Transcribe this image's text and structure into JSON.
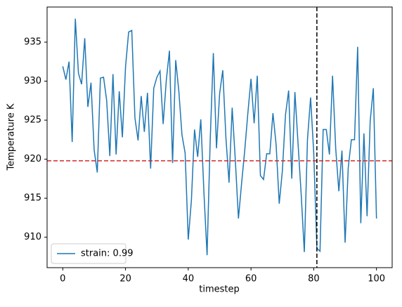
{
  "chart_data": {
    "type": "line",
    "xlabel": "timestep",
    "ylabel": "Temperature K",
    "x": [
      0,
      1,
      2,
      3,
      4,
      5,
      6,
      7,
      8,
      9,
      10,
      11,
      12,
      13,
      14,
      15,
      16,
      17,
      18,
      19,
      20,
      21,
      22,
      23,
      24,
      25,
      26,
      27,
      28,
      29,
      30,
      31,
      32,
      33,
      34,
      35,
      36,
      37,
      38,
      39,
      40,
      41,
      42,
      43,
      44,
      45,
      46,
      47,
      48,
      49,
      50,
      51,
      52,
      53,
      54,
      55,
      56,
      57,
      58,
      59,
      60,
      61,
      62,
      63,
      64,
      65,
      66,
      67,
      68,
      69,
      70,
      71,
      72,
      73,
      74,
      75,
      76,
      77,
      78,
      79,
      80,
      81,
      82,
      83,
      84,
      85,
      86,
      87,
      88,
      89,
      90,
      91,
      92,
      93,
      94,
      95,
      96,
      97,
      98,
      99,
      100
    ],
    "series": [
      {
        "name": "strain: 0.99",
        "color": "#1f77b4",
        "values": [
          931.9,
          930.2,
          932.5,
          922.2,
          938,
          931,
          929.6,
          935.5,
          926.7,
          929.8,
          921.2,
          918.3,
          930.4,
          930.5,
          927.5,
          920.4,
          930.9,
          920.6,
          928.7,
          922.8,
          931.8,
          936.3,
          936.5,
          925.3,
          922.4,
          928.1,
          923.5,
          928.5,
          918.8,
          929.1,
          930.5,
          931.3,
          924.5,
          930.1,
          933.9,
          919.5,
          932.7,
          928.7,
          923.1,
          920.8,
          909.7,
          914.7,
          923.8,
          920.3,
          925.1,
          915.7,
          907.7,
          922.5,
          933.6,
          921.4,
          928.4,
          931.4,
          922.8,
          917,
          926.6,
          919.9,
          912.4,
          916.9,
          921.1,
          925.9,
          930.3,
          924.6,
          930.7,
          917.9,
          917.4,
          920.7,
          920.7,
          925.9,
          921.9,
          914.3,
          918.5,
          925.7,
          928.8,
          917.5,
          928.6,
          922,
          915.5,
          908.1,
          922.5,
          927.9,
          920.8,
          908.6,
          908.2,
          923.8,
          923.8,
          920.6,
          930.7,
          921.4,
          915.9,
          921.1,
          909.3,
          918.9,
          922.5,
          922.5,
          934.4,
          911.8,
          923.3,
          912.7,
          924.9,
          929.1,
          912.4
        ]
      }
    ],
    "hline": 919.8,
    "hline_color": "#d62728",
    "vline": 81,
    "vline_color": "#000000",
    "xlim": [
      -5,
      105
    ],
    "xticks": [
      0,
      20,
      40,
      60,
      80,
      100
    ],
    "ylim": [
      906.1,
      939.5
    ],
    "yticks": [
      910,
      915,
      920,
      925,
      930,
      935
    ],
    "legend": "lower left"
  }
}
